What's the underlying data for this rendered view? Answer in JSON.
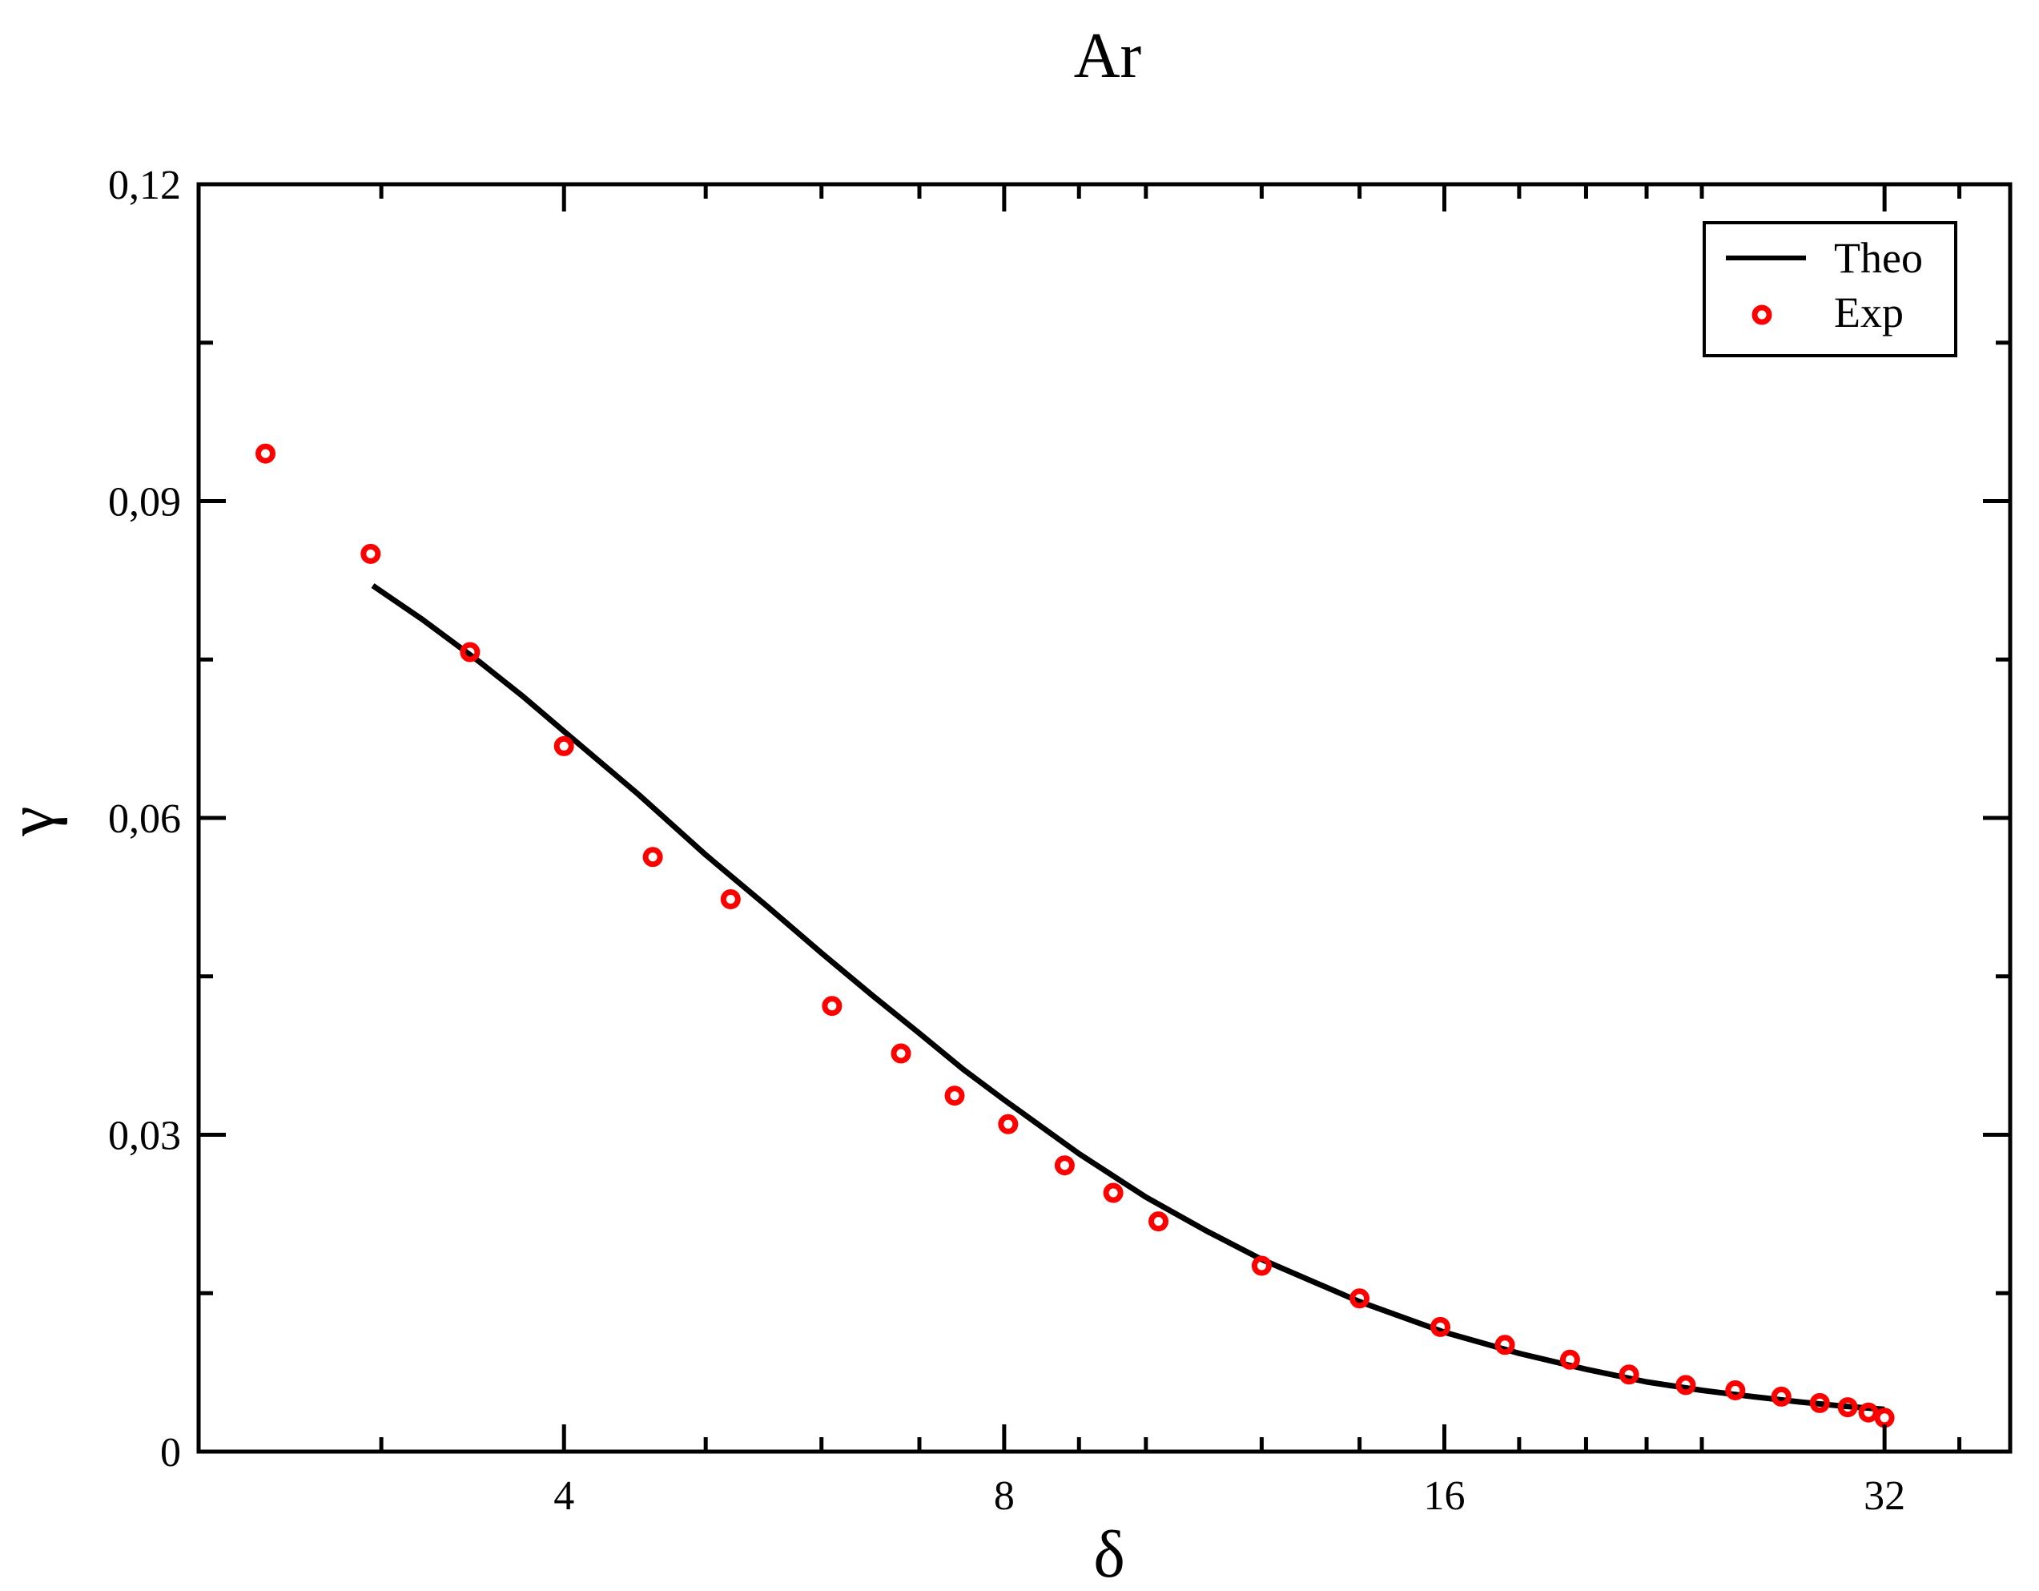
{
  "chart_data": {
    "type": "line",
    "title": "Ar",
    "xlabel": "δ",
    "ylabel": "γ",
    "x_scale": "log2",
    "xlim": [
      2.25,
      39
    ],
    "ylim": [
      0,
      0.12
    ],
    "x_ticks": [
      {
        "value": 4,
        "label": "4"
      },
      {
        "value": 8,
        "label": "8"
      },
      {
        "value": 16,
        "label": "16"
      },
      {
        "value": 32,
        "label": "32"
      }
    ],
    "x_minor_ticks": [
      3,
      5,
      6,
      7,
      9,
      10,
      12,
      14,
      18,
      20,
      22,
      24,
      36
    ],
    "y_ticks": [
      {
        "value": 0,
        "label": "0"
      },
      {
        "value": 0.03,
        "label": "0,03"
      },
      {
        "value": 0.06,
        "label": "0,06"
      },
      {
        "value": 0.09,
        "label": "0,09"
      },
      {
        "value": 0.12,
        "label": "0,12"
      }
    ],
    "y_minor_ticks": [
      0.015,
      0.045,
      0.075,
      0.105
    ],
    "grid": false,
    "legend_position": "top-right",
    "series": [
      {
        "name": "Theo",
        "style": "line",
        "color": "#000000",
        "points": [
          [
            2.96,
            0.082
          ],
          [
            3.2,
            0.0788
          ],
          [
            3.5,
            0.0748
          ],
          [
            3.75,
            0.0715
          ],
          [
            4.0,
            0.0682
          ],
          [
            4.5,
            0.0622
          ],
          [
            5.0,
            0.0565
          ],
          [
            5.5,
            0.0517
          ],
          [
            6.0,
            0.0472
          ],
          [
            6.5,
            0.0432
          ],
          [
            7.0,
            0.0396
          ],
          [
            7.5,
            0.0362
          ],
          [
            8.0,
            0.0333
          ],
          [
            9.0,
            0.0282
          ],
          [
            10.0,
            0.0241
          ],
          [
            11.0,
            0.0209
          ],
          [
            12.0,
            0.0182
          ],
          [
            14.0,
            0.0142
          ],
          [
            16.0,
            0.0113
          ],
          [
            18.0,
            0.0093
          ],
          [
            20.0,
            0.0078
          ],
          [
            22.0,
            0.0066
          ],
          [
            24.0,
            0.0058
          ],
          [
            26.0,
            0.0052
          ],
          [
            28.0,
            0.0047
          ],
          [
            30.0,
            0.0043
          ],
          [
            32.0,
            0.004
          ]
        ]
      },
      {
        "name": "Exp",
        "style": "scatter",
        "color": "#ff0000",
        "points": [
          [
            2.5,
            0.0945
          ],
          [
            2.95,
            0.085
          ],
          [
            3.45,
            0.0757
          ],
          [
            4.0,
            0.0668
          ],
          [
            4.6,
            0.0563
          ],
          [
            5.2,
            0.0523
          ],
          [
            6.1,
            0.0422
          ],
          [
            6.8,
            0.0377
          ],
          [
            7.4,
            0.0337
          ],
          [
            8.05,
            0.031
          ],
          [
            8.8,
            0.0271
          ],
          [
            9.5,
            0.0245
          ],
          [
            10.2,
            0.0218
          ],
          [
            12.0,
            0.0176
          ],
          [
            14.0,
            0.0145
          ],
          [
            15.9,
            0.0118
          ],
          [
            17.6,
            0.0101
          ],
          [
            19.5,
            0.0087
          ],
          [
            21.4,
            0.0073
          ],
          [
            23.4,
            0.0063
          ],
          [
            25.3,
            0.0058
          ],
          [
            27.2,
            0.0052
          ],
          [
            28.9,
            0.0046
          ],
          [
            30.2,
            0.0042
          ],
          [
            31.2,
            0.0037
          ],
          [
            32.0,
            0.0032
          ]
        ]
      }
    ]
  }
}
